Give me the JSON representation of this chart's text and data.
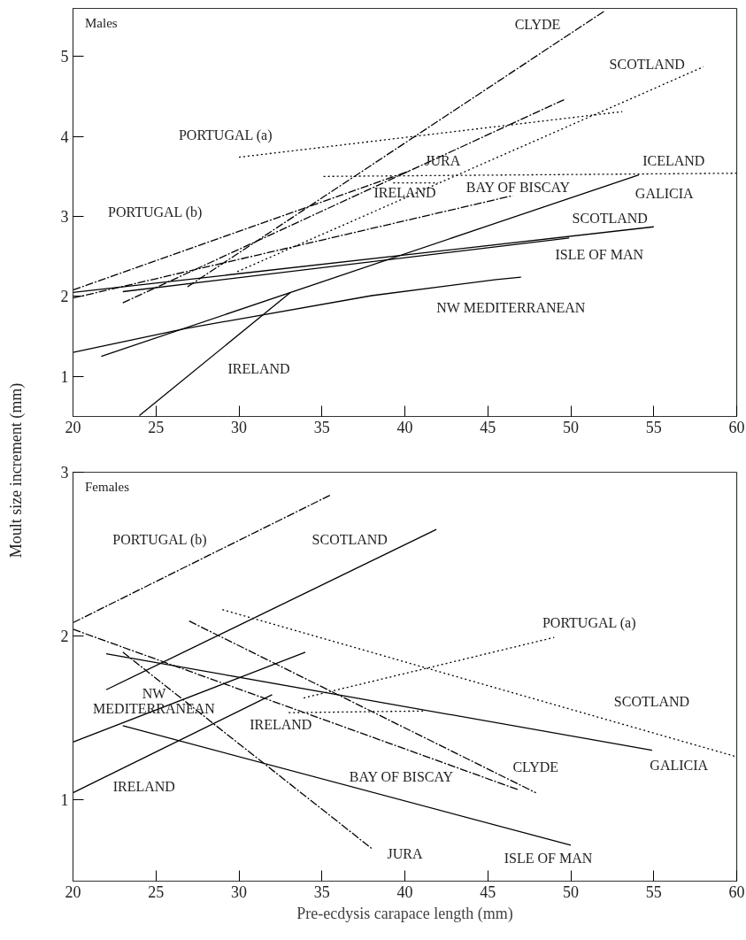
{
  "chart_data": [
    {
      "type": "line",
      "title": "Males",
      "ylabel": "Moult size increment (mm)",
      "xlim": [
        20,
        60
      ],
      "ylim": [
        0.5,
        5.6
      ],
      "xticks": [
        20,
        25,
        30,
        35,
        40,
        45,
        50,
        55,
        60
      ],
      "yticks": [
        1,
        2,
        3,
        4,
        5
      ],
      "series": [
        {
          "color": "#000000",
          "line_style": "dashed",
          "x": [
            26.9,
            52.05
          ],
          "values": [
            2.12,
            5.57
          ]
        },
        {
          "color": "#000000",
          "line_style": "dashed",
          "x": [
            23,
            49.7
          ],
          "values": [
            1.92,
            4.47
          ]
        },
        {
          "color": "#000000",
          "line_style": "dashed",
          "x": [
            20,
            40.3
          ],
          "values": [
            2.08,
            3.57
          ]
        },
        {
          "color": "#000000",
          "line_style": "dashed",
          "x": [
            20,
            46.5
          ],
          "values": [
            1.98,
            3.26
          ]
        },
        {
          "color": "#000000",
          "line_style": "dotted",
          "x": [
            30,
            53.1
          ],
          "values": [
            3.74,
            4.31
          ]
        },
        {
          "color": "#000000",
          "line_style": "dotted",
          "x": [
            35.1,
            60
          ],
          "values": [
            3.5,
            3.54
          ]
        },
        {
          "color": "#000000",
          "line_style": "dotted",
          "x": [
            29.9,
            58
          ],
          "values": [
            2.31,
            4.87
          ]
        },
        {
          "color": "#000000",
          "line_style": "dotted",
          "x": [
            39.3,
            42
          ],
          "values": [
            3.42,
            3.42
          ]
        },
        {
          "color": "#000000",
          "line_style": "solid",
          "x": [
            20,
            55
          ],
          "values": [
            2.05,
            2.87
          ]
        },
        {
          "color": "#000000",
          "line_style": "solid",
          "x": [
            23,
            49.9
          ],
          "values": [
            2.06,
            2.73
          ]
        },
        {
          "color": "#000000",
          "line_style": "solid",
          "x": [
            21.7,
            54.1
          ],
          "values": [
            1.25,
            3.52
          ]
        },
        {
          "color": "#000000",
          "line_style": "solid",
          "x": [
            24,
            33.1
          ],
          "values": [
            0.51,
            2.05
          ]
        },
        {
          "color": "#000000",
          "line_style": "solid",
          "x": [
            20,
            26.8,
            38,
            45.5,
            47
          ],
          "values": [
            1.3,
            1.6,
            2.01,
            2.21,
            2.24
          ]
        }
      ],
      "annotations": [
        "PORTUGAL (a)",
        "PORTUGAL (b)",
        "IRELAND",
        "CLYDE",
        "SCOTLAND",
        "JURA",
        "IRELAND",
        "BAY OF BISCAY",
        "ICELAND",
        "GALICIA",
        "SCOTLAND",
        "ISLE OF MAN",
        "NW MEDITERRANEAN"
      ]
    },
    {
      "type": "line",
      "title": "Females",
      "xlabel": "Pre-ecdysis carapace length (mm)",
      "xlim": [
        20,
        60
      ],
      "ylim": [
        0.5,
        3
      ],
      "xticks": [
        20,
        25,
        30,
        35,
        40,
        45,
        50,
        55,
        60
      ],
      "yticks": [
        1,
        2,
        3
      ],
      "series": [
        {
          "color": "#000000",
          "line_style": "dashed",
          "x": [
            20,
            35.5
          ],
          "values": [
            2.08,
            2.86
          ]
        },
        {
          "color": "#000000",
          "line_style": "solid",
          "x": [
            22,
            41.9
          ],
          "values": [
            1.67,
            2.65
          ]
        },
        {
          "color": "#000000",
          "line_style": "dotted",
          "x": [
            29,
            60
          ],
          "values": [
            2.16,
            1.26
          ]
        },
        {
          "color": "#000000",
          "line_style": "dotted",
          "x": [
            33.9,
            49
          ],
          "values": [
            1.62,
            1.99
          ]
        },
        {
          "color": "#000000",
          "line_style": "dotted",
          "x": [
            33,
            41.1
          ],
          "values": [
            1.53,
            1.54
          ]
        },
        {
          "color": "#000000",
          "line_style": "solid",
          "x": [
            22,
            54.9
          ],
          "values": [
            1.89,
            1.3
          ]
        },
        {
          "color": "#000000",
          "line_style": "dashed",
          "x": [
            27,
            47.9
          ],
          "values": [
            2.09,
            1.04
          ]
        },
        {
          "color": "#000000",
          "line_style": "dashed",
          "x": [
            20,
            46.8
          ],
          "values": [
            2.04,
            1.06
          ]
        },
        {
          "color": "#000000",
          "line_style": "dashed",
          "x": [
            23,
            38
          ],
          "values": [
            1.9,
            0.7
          ]
        },
        {
          "color": "#000000",
          "line_style": "solid",
          "x": [
            20,
            34
          ],
          "values": [
            1.35,
            1.9
          ]
        },
        {
          "color": "#000000",
          "line_style": "solid",
          "x": [
            20,
            32
          ],
          "values": [
            1.04,
            1.64
          ]
        },
        {
          "color": "#000000",
          "line_style": "solid",
          "x": [
            23,
            50
          ],
          "values": [
            1.45,
            0.72
          ]
        }
      ],
      "annotations": [
        "PORTUGAL (b)",
        "SCOTLAND",
        "PORTUGAL (a)",
        "SCOTLAND",
        "NW\nMEDITERRANEAN",
        "IRELAND",
        "CLYDE",
        "GALICIA",
        "IRELAND",
        "BAY OF BISCAY",
        "JURA",
        "ISLE OF MAN"
      ]
    }
  ]
}
